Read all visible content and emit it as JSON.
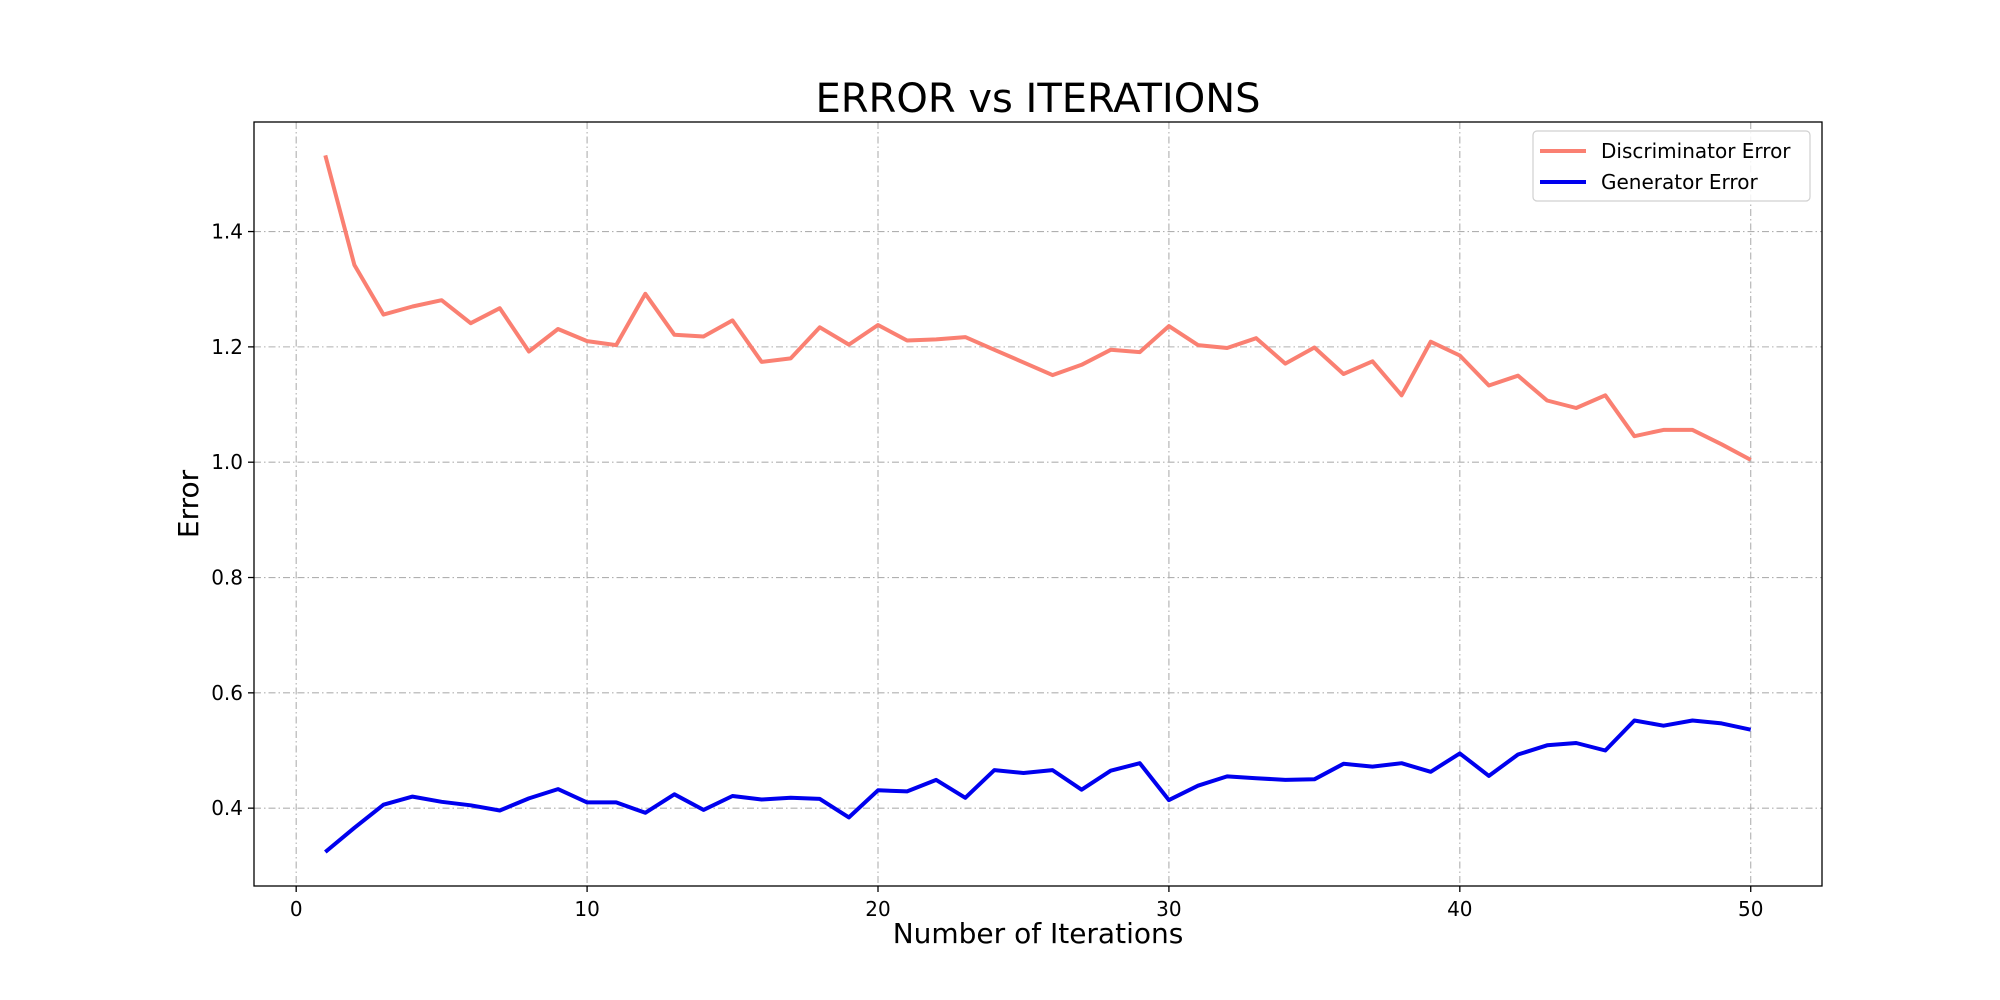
{
  "chart_data": {
    "type": "line",
    "title": "ERROR vs ITERATIONS",
    "xlabel": "Number of Iterations",
    "ylabel": "Error",
    "xlim": [
      -1.45,
      52.45
    ],
    "ylim": [
      0.265,
      1.59
    ],
    "xticks": [
      0,
      10,
      20,
      30,
      40,
      50
    ],
    "yticks": [
      0.4,
      0.6,
      0.8,
      1.0,
      1.2,
      1.4
    ],
    "xtick_labels": [
      "0",
      "10",
      "20",
      "30",
      "40",
      "50"
    ],
    "ytick_labels": [
      "0.4",
      "0.6",
      "0.8",
      "1.0",
      "1.2",
      "1.4"
    ],
    "grid": true,
    "legend_position": "top-right",
    "x": [
      1,
      2,
      3,
      4,
      5,
      6,
      7,
      8,
      9,
      10,
      11,
      12,
      13,
      14,
      15,
      16,
      17,
      18,
      19,
      20,
      21,
      22,
      23,
      24,
      25,
      26,
      27,
      28,
      29,
      30,
      31,
      32,
      33,
      34,
      35,
      36,
      37,
      38,
      39,
      40,
      41,
      42,
      43,
      44,
      45,
      46,
      47,
      48,
      49,
      50
    ],
    "series": [
      {
        "name": "Discriminator Error",
        "color": "#fa8072",
        "values": [
          1.532,
          1.342,
          1.256,
          1.27,
          1.281,
          1.241,
          1.267,
          1.192,
          1.231,
          1.21,
          1.203,
          1.292,
          1.221,
          1.218,
          1.246,
          1.174,
          1.18,
          1.234,
          1.204,
          1.238,
          1.211,
          1.213,
          1.217,
          1.195,
          1.173,
          1.151,
          1.169,
          1.195,
          1.191,
          1.236,
          1.203,
          1.198,
          1.215,
          1.171,
          1.199,
          1.153,
          1.175,
          1.116,
          1.209,
          1.185,
          1.133,
          1.15,
          1.107,
          1.094,
          1.116,
          1.045,
          1.056,
          1.056,
          1.031,
          1.004
        ]
      },
      {
        "name": "Generator Error",
        "color": "#0000ee",
        "values": [
          0.324,
          0.366,
          0.406,
          0.42,
          0.411,
          0.405,
          0.396,
          0.417,
          0.433,
          0.41,
          0.41,
          0.392,
          0.424,
          0.397,
          0.421,
          0.415,
          0.418,
          0.416,
          0.384,
          0.431,
          0.429,
          0.449,
          0.418,
          0.466,
          0.461,
          0.466,
          0.432,
          0.465,
          0.478,
          0.414,
          0.439,
          0.455,
          0.452,
          0.449,
          0.45,
          0.477,
          0.472,
          0.478,
          0.463,
          0.495,
          0.456,
          0.493,
          0.509,
          0.513,
          0.5,
          0.552,
          0.543,
          0.552,
          0.547,
          0.536
        ]
      }
    ]
  }
}
